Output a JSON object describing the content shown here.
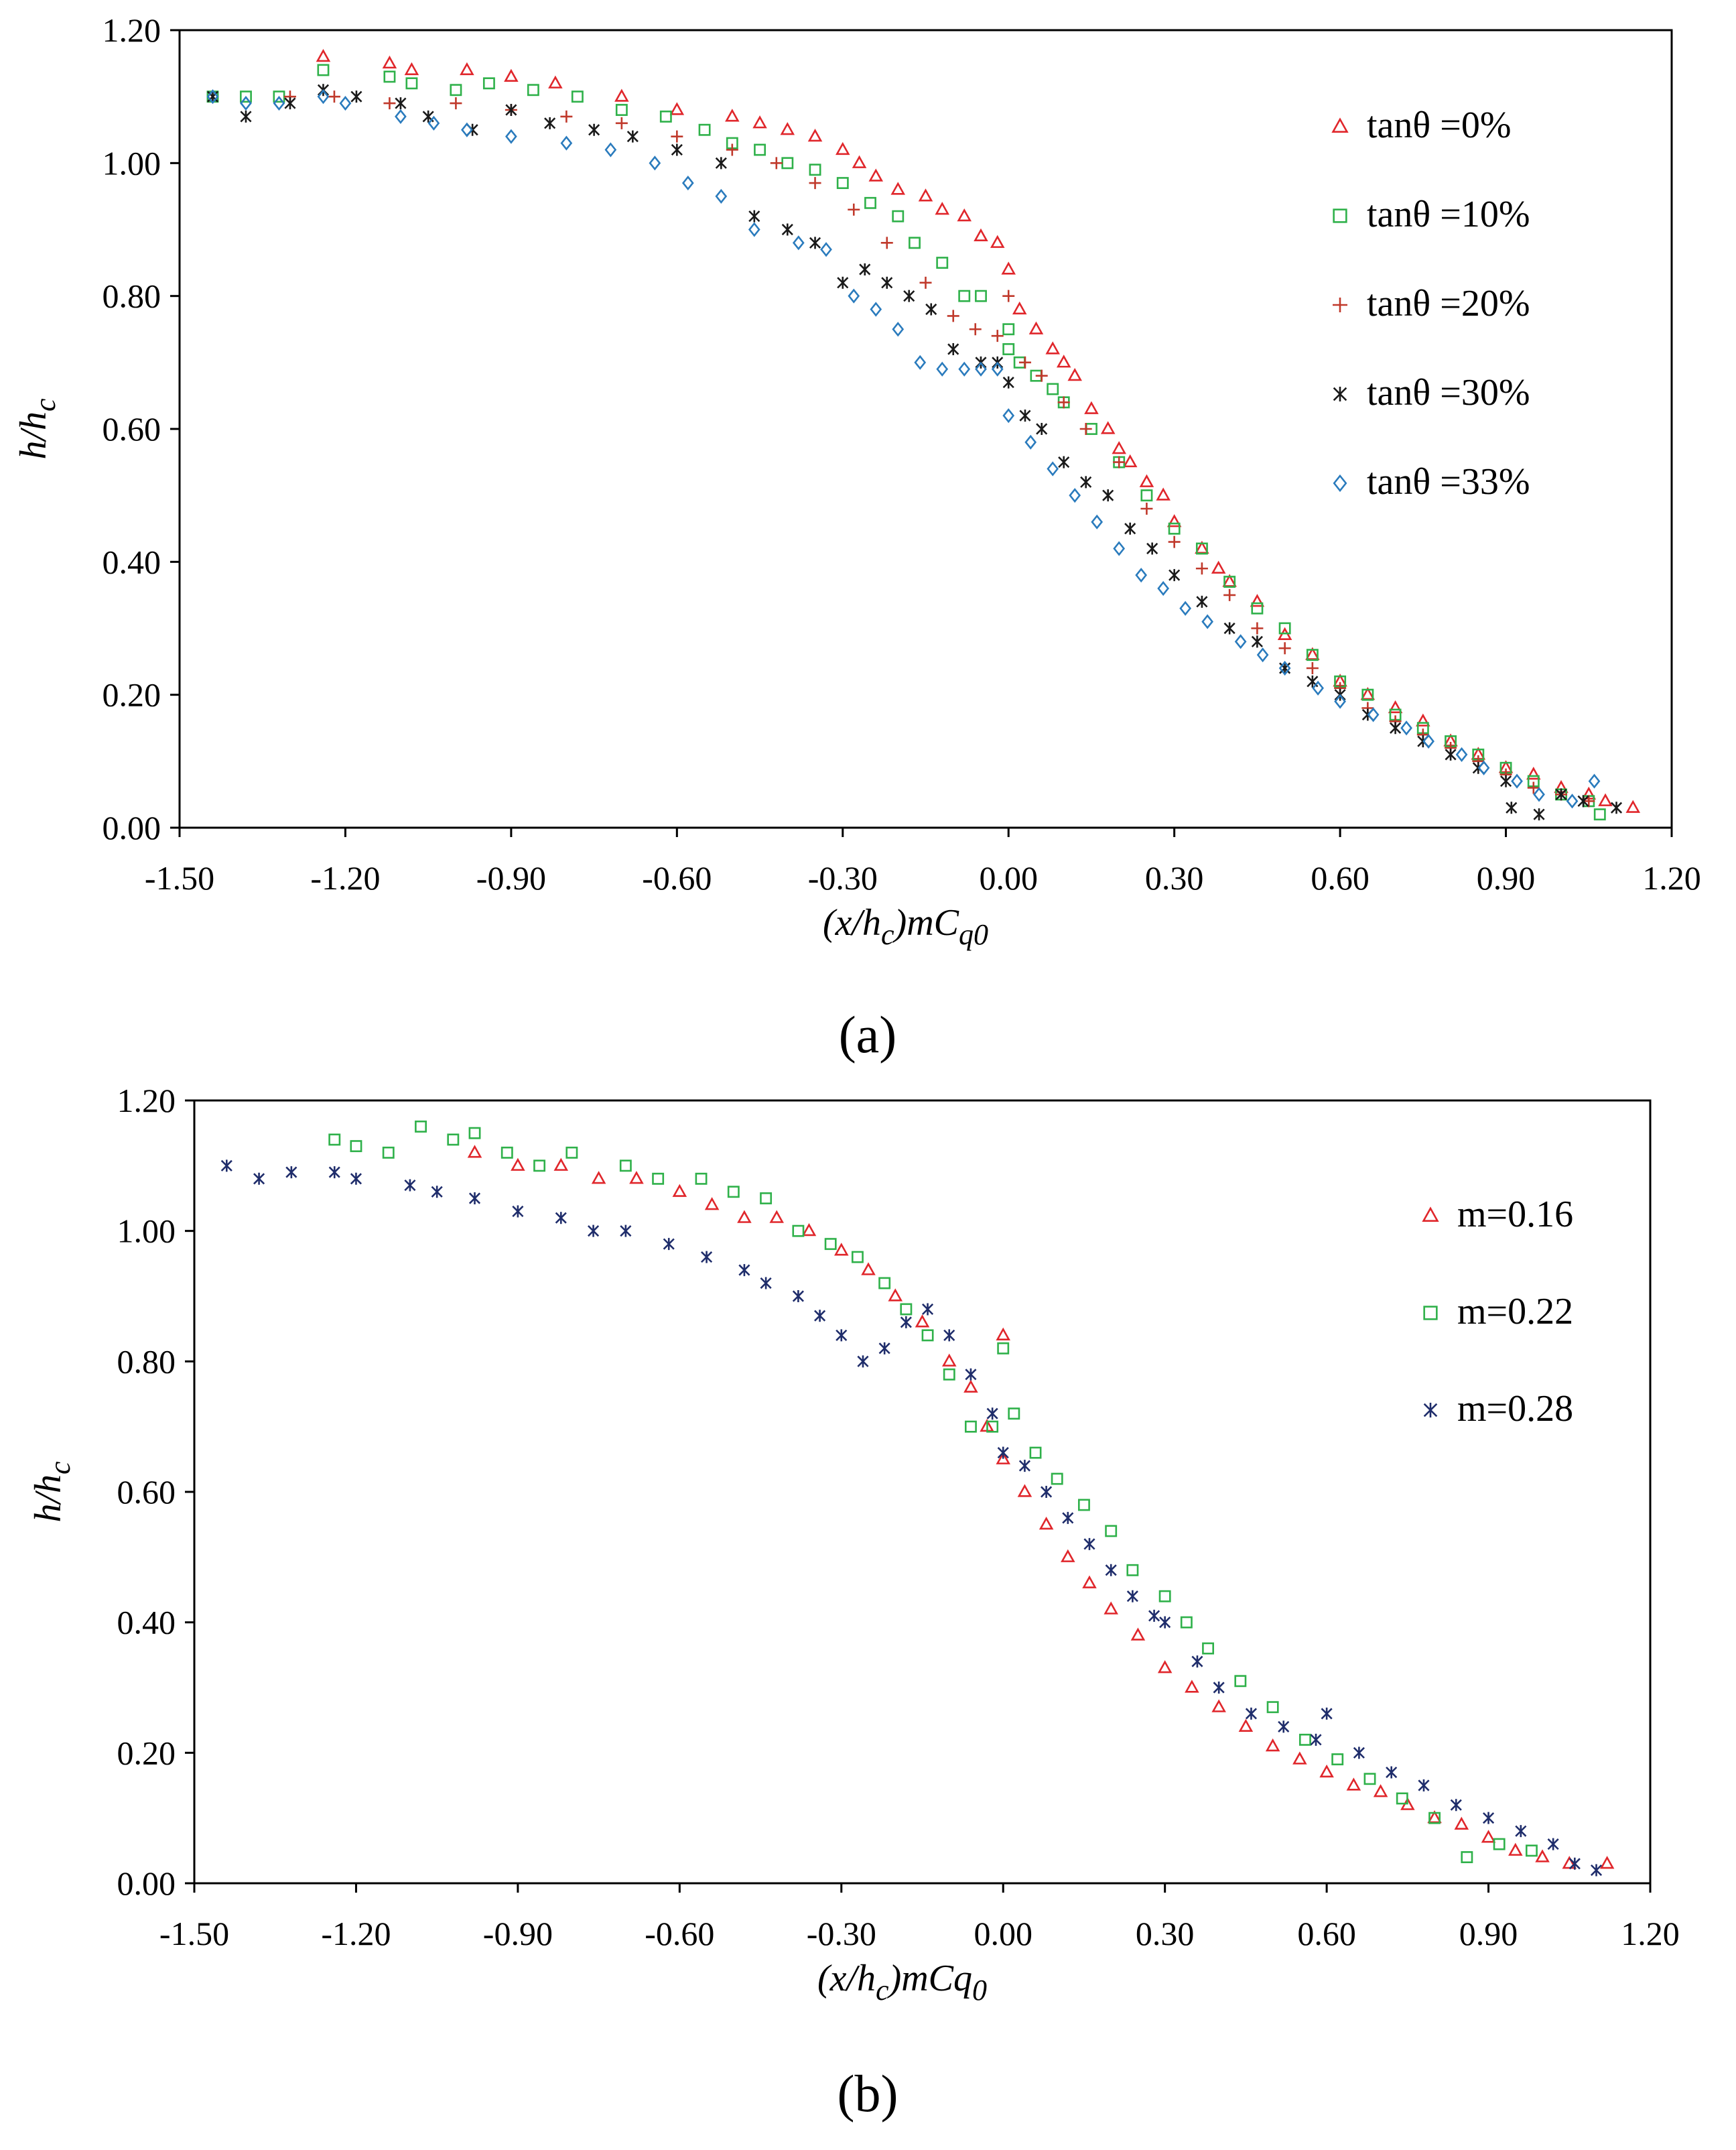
{
  "colors": {
    "red": "#e0262b",
    "green": "#2fb14a",
    "dark_red": "#c0392b",
    "black": "#1a1a1a",
    "blue": "#2a7bbd",
    "navy": "#1f2d6b"
  },
  "chart_data": [
    {
      "id": "a",
      "type": "scatter",
      "caption": "(a)",
      "xlabel": {
        "base": "(x/h",
        "sub1": "c",
        "mid": ")mC",
        "sub2": "q0"
      },
      "ylabel": {
        "base": "h/h",
        "sub": "c"
      },
      "xlim": [
        -1.5,
        1.2
      ],
      "ylim": [
        0,
        1.2
      ],
      "x_ticks": [
        -1.5,
        -1.2,
        -0.9,
        -0.6,
        -0.3,
        0.0,
        0.3,
        0.6,
        0.9,
        1.2
      ],
      "x_tick_labels": [
        "-1.50",
        "-1.20",
        "-0.90",
        "-0.60",
        "-0.30",
        "0.00",
        "0.30",
        "0.60",
        "0.90",
        "1.20"
      ],
      "y_ticks": [
        0.0,
        0.2,
        0.4,
        0.6,
        0.8,
        1.0,
        1.2
      ],
      "y_tick_labels": [
        "0.00",
        "0.20",
        "0.40",
        "0.60",
        "0.80",
        "1.00",
        "1.20"
      ],
      "legend_position": "right",
      "series": [
        {
          "name": "tanθ =0%",
          "marker": "triangle",
          "color_key": "red",
          "x": [
            -1.24,
            -1.12,
            -1.08,
            -0.98,
            -0.9,
            -0.82,
            -0.7,
            -0.6,
            -0.5,
            -0.45,
            -0.4,
            -0.35,
            -0.3,
            -0.27,
            -0.24,
            -0.2,
            -0.15,
            -0.12,
            -0.08,
            -0.05,
            -0.02,
            0.0,
            0.02,
            0.05,
            0.08,
            0.1,
            0.12,
            0.15,
            0.18,
            0.2,
            0.22,
            0.25,
            0.28,
            0.3,
            0.35,
            0.38,
            0.4,
            0.45,
            0.5,
            0.55,
            0.6,
            0.65,
            0.7,
            0.75,
            0.8,
            0.85,
            0.9,
            0.95,
            1.0,
            1.05,
            1.08,
            1.13
          ],
          "y": [
            1.16,
            1.15,
            1.14,
            1.14,
            1.13,
            1.12,
            1.1,
            1.08,
            1.07,
            1.06,
            1.05,
            1.04,
            1.02,
            1.0,
            0.98,
            0.96,
            0.95,
            0.93,
            0.92,
            0.89,
            0.88,
            0.84,
            0.78,
            0.75,
            0.72,
            0.7,
            0.68,
            0.63,
            0.6,
            0.57,
            0.55,
            0.52,
            0.5,
            0.46,
            0.42,
            0.39,
            0.37,
            0.34,
            0.29,
            0.26,
            0.22,
            0.2,
            0.18,
            0.16,
            0.13,
            0.11,
            0.09,
            0.08,
            0.06,
            0.05,
            0.04,
            0.03
          ]
        },
        {
          "name": "tanθ =10%",
          "marker": "square",
          "color_key": "green",
          "x": [
            -1.44,
            -1.38,
            -1.32,
            -1.24,
            -1.12,
            -1.08,
            -1.0,
            -0.94,
            -0.86,
            -0.78,
            -0.7,
            -0.62,
            -0.55,
            -0.5,
            -0.45,
            -0.4,
            -0.35,
            -0.3,
            -0.25,
            -0.2,
            -0.17,
            -0.12,
            -0.08,
            -0.05,
            0.0,
            0.0,
            0.02,
            0.05,
            0.08,
            0.1,
            0.15,
            0.2,
            0.25,
            0.3,
            0.35,
            0.4,
            0.45,
            0.5,
            0.55,
            0.6,
            0.65,
            0.7,
            0.75,
            0.8,
            0.85,
            0.9,
            0.95,
            1.0,
            1.05,
            1.07
          ],
          "y": [
            1.1,
            1.1,
            1.1,
            1.14,
            1.13,
            1.12,
            1.11,
            1.12,
            1.11,
            1.1,
            1.08,
            1.07,
            1.05,
            1.03,
            1.02,
            1.0,
            0.99,
            0.97,
            0.94,
            0.92,
            0.88,
            0.85,
            0.8,
            0.8,
            0.75,
            0.72,
            0.7,
            0.68,
            0.66,
            0.64,
            0.6,
            0.55,
            0.5,
            0.45,
            0.42,
            0.37,
            0.33,
            0.3,
            0.26,
            0.22,
            0.2,
            0.17,
            0.15,
            0.13,
            0.11,
            0.09,
            0.07,
            0.05,
            0.04,
            0.02
          ]
        },
        {
          "name": "tanθ =20%",
          "marker": "plus",
          "color_key": "dark_red",
          "x": [
            -1.3,
            -1.22,
            -1.12,
            -1.0,
            -0.9,
            -0.8,
            -0.7,
            -0.6,
            -0.5,
            -0.42,
            -0.35,
            -0.28,
            -0.22,
            -0.15,
            -0.1,
            -0.06,
            -0.02,
            0.0,
            0.03,
            0.06,
            0.1,
            0.14,
            0.2,
            0.25,
            0.3,
            0.35,
            0.4,
            0.45,
            0.5,
            0.55,
            0.6,
            0.65,
            0.7,
            0.75,
            0.8,
            0.85,
            0.9,
            0.95,
            1.0,
            1.05
          ],
          "y": [
            1.1,
            1.1,
            1.09,
            1.09,
            1.08,
            1.07,
            1.06,
            1.04,
            1.02,
            1.0,
            0.97,
            0.93,
            0.88,
            0.82,
            0.77,
            0.75,
            0.74,
            0.8,
            0.7,
            0.68,
            0.64,
            0.6,
            0.55,
            0.48,
            0.43,
            0.39,
            0.35,
            0.3,
            0.27,
            0.24,
            0.21,
            0.18,
            0.16,
            0.14,
            0.12,
            0.1,
            0.08,
            0.06,
            0.05,
            0.04
          ]
        },
        {
          "name": "tanθ =30%",
          "marker": "asterisk",
          "color_key": "black",
          "x": [
            -1.44,
            -1.38,
            -1.3,
            -1.24,
            -1.18,
            -1.1,
            -1.05,
            -0.97,
            -0.9,
            -0.83,
            -0.75,
            -0.68,
            -0.6,
            -0.52,
            -0.46,
            -0.4,
            -0.35,
            -0.3,
            -0.26,
            -0.22,
            -0.18,
            -0.14,
            -0.1,
            -0.05,
            -0.02,
            0.0,
            0.03,
            0.06,
            0.1,
            0.14,
            0.18,
            0.22,
            0.26,
            0.3,
            0.35,
            0.4,
            0.45,
            0.5,
            0.55,
            0.6,
            0.65,
            0.7,
            0.75,
            0.8,
            0.85,
            0.9,
            0.91,
            0.96,
            1.0,
            1.04,
            1.1
          ],
          "y": [
            1.1,
            1.07,
            1.09,
            1.11,
            1.1,
            1.09,
            1.07,
            1.05,
            1.08,
            1.06,
            1.05,
            1.04,
            1.02,
            1.0,
            0.92,
            0.9,
            0.88,
            0.82,
            0.84,
            0.82,
            0.8,
            0.78,
            0.72,
            0.7,
            0.7,
            0.67,
            0.62,
            0.6,
            0.55,
            0.52,
            0.5,
            0.45,
            0.42,
            0.38,
            0.34,
            0.3,
            0.28,
            0.24,
            0.22,
            0.2,
            0.17,
            0.15,
            0.13,
            0.11,
            0.09,
            0.07,
            0.03,
            0.02,
            0.05,
            0.04,
            0.03
          ]
        },
        {
          "name": "tanθ =33%",
          "marker": "diamond",
          "color_key": "blue",
          "x": [
            -1.44,
            -1.38,
            -1.32,
            -1.24,
            -1.2,
            -1.1,
            -1.04,
            -0.98,
            -0.9,
            -0.8,
            -0.72,
            -0.64,
            -0.58,
            -0.52,
            -0.46,
            -0.38,
            -0.33,
            -0.28,
            -0.24,
            -0.2,
            -0.16,
            -0.12,
            -0.08,
            -0.05,
            -0.02,
            0.0,
            0.04,
            0.08,
            0.12,
            0.16,
            0.2,
            0.24,
            0.28,
            0.32,
            0.36,
            0.42,
            0.46,
            0.5,
            0.56,
            0.6,
            0.66,
            0.72,
            0.76,
            0.82,
            0.86,
            0.92,
            0.96,
            1.02,
            1.06
          ],
          "y": [
            1.1,
            1.09,
            1.09,
            1.1,
            1.09,
            1.07,
            1.06,
            1.05,
            1.04,
            1.03,
            1.02,
            1.0,
            0.97,
            0.95,
            0.9,
            0.88,
            0.87,
            0.8,
            0.78,
            0.75,
            0.7,
            0.69,
            0.69,
            0.69,
            0.69,
            0.62,
            0.58,
            0.54,
            0.5,
            0.46,
            0.42,
            0.38,
            0.36,
            0.33,
            0.31,
            0.28,
            0.26,
            0.24,
            0.21,
            0.19,
            0.17,
            0.15,
            0.13,
            0.11,
            0.09,
            0.07,
            0.05,
            0.04,
            0.07
          ]
        }
      ]
    },
    {
      "id": "b",
      "type": "scatter",
      "caption": "(b)",
      "xlabel": {
        "base": "(x/h",
        "sub1": "c",
        "mid": ")mCq",
        "sub2": "0"
      },
      "ylabel": {
        "base": "h/h",
        "sub": "c"
      },
      "xlim": [
        -1.5,
        1.2
      ],
      "ylim": [
        0,
        1.2
      ],
      "x_ticks": [
        -1.5,
        -1.2,
        -0.9,
        -0.6,
        -0.3,
        0.0,
        0.3,
        0.6,
        0.9,
        1.2
      ],
      "x_tick_labels": [
        "-1.50",
        "-1.20",
        "-0.90",
        "-0.60",
        "-0.30",
        "0.00",
        "0.30",
        "0.60",
        "0.90",
        "1.20"
      ],
      "y_ticks": [
        0.0,
        0.2,
        0.4,
        0.6,
        0.8,
        1.0,
        1.2
      ],
      "y_tick_labels": [
        "0.00",
        "0.20",
        "0.40",
        "0.60",
        "0.80",
        "1.00",
        "1.20"
      ],
      "legend_position": "right",
      "series": [
        {
          "name": "m=0.16",
          "marker": "triangle",
          "color_key": "red",
          "x": [
            -0.98,
            -0.9,
            -0.82,
            -0.75,
            -0.68,
            -0.6,
            -0.54,
            -0.48,
            -0.42,
            -0.36,
            -0.3,
            -0.25,
            -0.2,
            -0.15,
            -0.1,
            -0.06,
            -0.03,
            0.0,
            0.0,
            0.04,
            0.08,
            0.12,
            0.16,
            0.2,
            0.25,
            0.3,
            0.35,
            0.4,
            0.45,
            0.5,
            0.55,
            0.6,
            0.65,
            0.7,
            0.75,
            0.8,
            0.85,
            0.9,
            0.95,
            1.0,
            1.05,
            1.12
          ],
          "y": [
            1.12,
            1.1,
            1.1,
            1.08,
            1.08,
            1.06,
            1.04,
            1.02,
            1.02,
            1.0,
            0.97,
            0.94,
            0.9,
            0.86,
            0.8,
            0.76,
            0.7,
            0.84,
            0.65,
            0.6,
            0.55,
            0.5,
            0.46,
            0.42,
            0.38,
            0.33,
            0.3,
            0.27,
            0.24,
            0.21,
            0.19,
            0.17,
            0.15,
            0.14,
            0.12,
            0.1,
            0.09,
            0.07,
            0.05,
            0.04,
            0.03,
            0.03
          ]
        },
        {
          "name": "m=0.22",
          "marker": "square",
          "color_key": "green",
          "x": [
            -1.24,
            -1.2,
            -1.14,
            -1.08,
            -1.02,
            -0.98,
            -0.92,
            -0.86,
            -0.8,
            -0.7,
            -0.64,
            -0.56,
            -0.5,
            -0.44,
            -0.38,
            -0.32,
            -0.27,
            -0.22,
            -0.18,
            -0.14,
            -0.1,
            -0.06,
            -0.02,
            0.0,
            0.02,
            0.06,
            0.1,
            0.15,
            0.2,
            0.24,
            0.3,
            0.34,
            0.38,
            0.44,
            0.5,
            0.56,
            0.62,
            0.68,
            0.74,
            0.8,
            0.86,
            0.92,
            0.98
          ],
          "y": [
            1.14,
            1.13,
            1.12,
            1.16,
            1.14,
            1.15,
            1.12,
            1.1,
            1.12,
            1.1,
            1.08,
            1.08,
            1.06,
            1.05,
            1.0,
            0.98,
            0.96,
            0.92,
            0.88,
            0.84,
            0.78,
            0.7,
            0.7,
            0.82,
            0.72,
            0.66,
            0.62,
            0.58,
            0.54,
            0.48,
            0.44,
            0.4,
            0.36,
            0.31,
            0.27,
            0.22,
            0.19,
            0.16,
            0.13,
            0.1,
            0.04,
            0.06,
            0.05
          ]
        },
        {
          "name": "m=0.28",
          "marker": "asterisk",
          "color_key": "navy",
          "x": [
            -1.44,
            -1.38,
            -1.32,
            -1.24,
            -1.2,
            -1.1,
            -1.05,
            -0.98,
            -0.9,
            -0.82,
            -0.76,
            -0.7,
            -0.62,
            -0.55,
            -0.48,
            -0.44,
            -0.38,
            -0.34,
            -0.3,
            -0.26,
            -0.22,
            -0.18,
            -0.14,
            -0.1,
            -0.06,
            -0.02,
            0.0,
            0.04,
            0.08,
            0.12,
            0.16,
            0.2,
            0.24,
            0.28,
            0.3,
            0.36,
            0.4,
            0.46,
            0.52,
            0.58,
            0.6,
            0.66,
            0.72,
            0.78,
            0.84,
            0.9,
            0.96,
            1.02,
            1.06,
            1.1
          ],
          "y": [
            1.1,
            1.08,
            1.09,
            1.09,
            1.08,
            1.07,
            1.06,
            1.05,
            1.03,
            1.02,
            1.0,
            1.0,
            0.98,
            0.96,
            0.94,
            0.92,
            0.9,
            0.87,
            0.84,
            0.8,
            0.82,
            0.86,
            0.88,
            0.84,
            0.78,
            0.72,
            0.66,
            0.64,
            0.6,
            0.56,
            0.52,
            0.48,
            0.44,
            0.41,
            0.4,
            0.34,
            0.3,
            0.26,
            0.24,
            0.22,
            0.26,
            0.2,
            0.17,
            0.15,
            0.12,
            0.1,
            0.08,
            0.06,
            0.03,
            0.02
          ]
        }
      ]
    }
  ]
}
